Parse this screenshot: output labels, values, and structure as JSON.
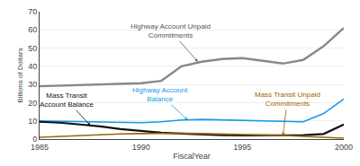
{
  "chart_data": {
    "type": "line",
    "xlabel": "FiscalYear",
    "ylabel": "Billions of Dollars",
    "x": [
      1985,
      1986,
      1987,
      1988,
      1989,
      1990,
      1991,
      1992,
      1993,
      1994,
      1995,
      1996,
      1997,
      1998,
      1999,
      2000
    ],
    "series": [
      {
        "color": "#888888",
        "values": [
          29.0,
          29.3,
          29.6,
          30.0,
          30.3,
          30.7,
          32.0,
          40.0,
          42.5,
          44.0,
          44.5,
          43.0,
          41.5,
          43.5,
          51.0,
          61.0
        ]
      },
      {
        "color": "#1199ee",
        "values": [
          10.0,
          9.8,
          9.6,
          9.5,
          9.3,
          9.0,
          9.5,
          10.5,
          10.8,
          10.5,
          10.2,
          9.8,
          9.5,
          9.5,
          14.0,
          22.0
        ]
      },
      {
        "color": "#111111",
        "values": [
          9.5,
          9.0,
          8.0,
          7.0,
          5.5,
          4.5,
          3.5,
          3.0,
          2.5,
          2.2,
          2.0,
          2.0,
          2.0,
          2.2,
          2.8,
          8.0
        ]
      },
      {
        "color": "#996600",
        "values": [
          1.0,
          1.5,
          2.0,
          2.5,
          2.8,
          3.0,
          3.2,
          3.2,
          3.0,
          2.8,
          2.5,
          2.3,
          2.0,
          1.5,
          1.0,
          0.5
        ]
      }
    ],
    "annotations": [
      {
        "text": "Highway Account Unpaid\nCommitments",
        "x": 1992.8,
        "y": 42.5,
        "color": "#555555"
      },
      {
        "text": "Highway Account\nBalance",
        "x": 1992.3,
        "y": 10.5,
        "color": "#1199ee"
      },
      {
        "text": "Mass Transit\nAccount Balance",
        "x": 1987.5,
        "y": 7.5,
        "color": "#111111"
      },
      {
        "text": "Mass Transit Unpaid\nCommitments",
        "x": 1997.0,
        "y": 2.0,
        "color": "#996600"
      }
    ],
    "xlim": [
      1985,
      2000
    ],
    "ylim": [
      0,
      70
    ],
    "xticks": [
      1985,
      1990,
      1995,
      2000
    ],
    "yticks": [
      0,
      10,
      20,
      30,
      40,
      50,
      60,
      70
    ],
    "grid": true
  }
}
